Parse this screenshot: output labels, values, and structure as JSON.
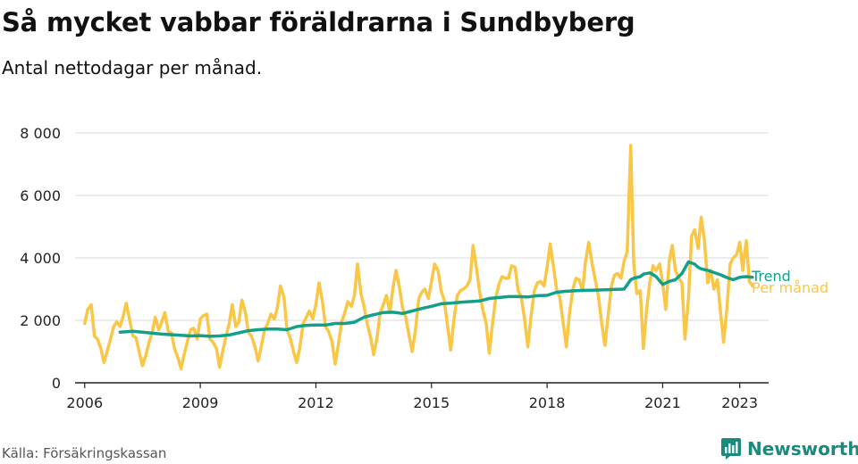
{
  "header": {
    "title": "Så mycket vabbar föräldrarna i Sundbyberg",
    "subtitle": "Antal nettodagar per månad."
  },
  "footer": {
    "source": "Källa: Försäkringskassan",
    "brand": "Newsworthy",
    "brand_icon": "bar-chart-logo-icon"
  },
  "colors": {
    "monthly": "#f9c646",
    "trend": "#13a08a",
    "grid": "#d9d9d9",
    "axis": "#222222",
    "brand": "#1a8a7c"
  },
  "chart_data": {
    "type": "line",
    "ylim": [
      0,
      8000
    ],
    "xlim": [
      2005.75,
      2023.75
    ],
    "y_ticks": [
      0,
      2000,
      4000,
      6000,
      8000
    ],
    "y_tick_labels": [
      "0",
      "2 000",
      "4 000",
      "6 000",
      "8 000"
    ],
    "x_ticks": [
      2006,
      2009,
      2012,
      2015,
      2018,
      2021,
      2023
    ],
    "x_tick_labels": [
      "2006",
      "2009",
      "2012",
      "2015",
      "2018",
      "2021",
      "2023"
    ],
    "grid": true,
    "series": [
      {
        "name": "Per månad",
        "x": [
          2006.0,
          2006.08,
          2006.17,
          2006.25,
          2006.33,
          2006.42,
          2006.5,
          2006.58,
          2006.67,
          2006.75,
          2006.83,
          2006.92,
          2007.0,
          2007.08,
          2007.17,
          2007.25,
          2007.33,
          2007.42,
          2007.5,
          2007.58,
          2007.67,
          2007.75,
          2007.83,
          2007.92,
          2008.0,
          2008.08,
          2008.17,
          2008.25,
          2008.33,
          2008.42,
          2008.5,
          2008.58,
          2008.67,
          2008.75,
          2008.83,
          2008.92,
          2009.0,
          2009.08,
          2009.17,
          2009.25,
          2009.33,
          2009.42,
          2009.5,
          2009.58,
          2009.67,
          2009.75,
          2009.83,
          2009.92,
          2010.0,
          2010.08,
          2010.17,
          2010.25,
          2010.33,
          2010.42,
          2010.5,
          2010.58,
          2010.67,
          2010.75,
          2010.83,
          2010.92,
          2011.0,
          2011.08,
          2011.17,
          2011.25,
          2011.33,
          2011.42,
          2011.5,
          2011.58,
          2011.67,
          2011.75,
          2011.83,
          2011.92,
          2012.0,
          2012.08,
          2012.17,
          2012.25,
          2012.33,
          2012.42,
          2012.5,
          2012.58,
          2012.67,
          2012.75,
          2012.83,
          2012.92,
          2013.0,
          2013.08,
          2013.17,
          2013.25,
          2013.33,
          2013.42,
          2013.5,
          2013.58,
          2013.67,
          2013.75,
          2013.83,
          2013.92,
          2014.0,
          2014.08,
          2014.17,
          2014.25,
          2014.33,
          2014.42,
          2014.5,
          2014.58,
          2014.67,
          2014.75,
          2014.83,
          2014.92,
          2015.0,
          2015.08,
          2015.17,
          2015.25,
          2015.33,
          2015.42,
          2015.5,
          2015.58,
          2015.67,
          2015.75,
          2015.83,
          2015.92,
          2016.0,
          2016.08,
          2016.17,
          2016.25,
          2016.33,
          2016.42,
          2016.5,
          2016.58,
          2016.67,
          2016.75,
          2016.83,
          2016.92,
          2017.0,
          2017.08,
          2017.17,
          2017.25,
          2017.33,
          2017.42,
          2017.5,
          2017.58,
          2017.67,
          2017.75,
          2017.83,
          2017.92,
          2018.0,
          2018.08,
          2018.17,
          2018.25,
          2018.33,
          2018.42,
          2018.5,
          2018.58,
          2018.67,
          2018.75,
          2018.83,
          2018.92,
          2019.0,
          2019.08,
          2019.17,
          2019.25,
          2019.33,
          2019.42,
          2019.5,
          2019.58,
          2019.67,
          2019.75,
          2019.83,
          2019.92,
          2020.0,
          2020.08,
          2020.17,
          2020.25,
          2020.33,
          2020.42,
          2020.5,
          2020.58,
          2020.67,
          2020.75,
          2020.83,
          2020.92,
          2021.0,
          2021.08,
          2021.17,
          2021.25,
          2021.33,
          2021.42,
          2021.5,
          2021.58,
          2021.67,
          2021.75,
          2021.83,
          2021.92,
          2022.0,
          2022.08,
          2022.17,
          2022.25,
          2022.33,
          2022.42,
          2022.5,
          2022.58,
          2022.67,
          2022.75,
          2022.83,
          2022.92,
          2023.0,
          2023.08,
          2023.17,
          2023.25,
          2023.33
        ],
        "values": [
          1900,
          2350,
          2500,
          1500,
          1400,
          1100,
          650,
          1000,
          1400,
          1800,
          1950,
          1800,
          2150,
          2550,
          2000,
          1500,
          1450,
          950,
          550,
          850,
          1300,
          1600,
          2100,
          1700,
          1950,
          2250,
          1650,
          1600,
          1100,
          800,
          450,
          900,
          1350,
          1700,
          1750,
          1400,
          2050,
          2150,
          2200,
          1400,
          1300,
          1100,
          500,
          1000,
          1500,
          1900,
          2500,
          1800,
          1950,
          2650,
          2250,
          1600,
          1500,
          1150,
          700,
          1150,
          1700,
          1900,
          2200,
          2050,
          2400,
          3100,
          2750,
          1700,
          1450,
          1000,
          650,
          1100,
          1900,
          2100,
          2300,
          2050,
          2500,
          3200,
          2600,
          1800,
          1650,
          1300,
          600,
          1200,
          1950,
          2250,
          2600,
          2450,
          2800,
          3800,
          2850,
          2450,
          1900,
          1450,
          900,
          1400,
          2250,
          2500,
          2800,
          2250,
          3050,
          3600,
          3050,
          2400,
          2100,
          1500,
          1000,
          1650,
          2700,
          2900,
          3000,
          2700,
          3250,
          3800,
          3600,
          2950,
          2650,
          1800,
          1050,
          2000,
          2800,
          2950,
          3000,
          3100,
          3300,
          4400,
          3650,
          2900,
          2350,
          1900,
          950,
          1850,
          2750,
          3150,
          3400,
          3350,
          3350,
          3750,
          3700,
          2950,
          2750,
          2000,
          1150,
          2100,
          2950,
          3200,
          3250,
          3100,
          3700,
          4450,
          3700,
          2950,
          2750,
          1900,
          1150,
          2200,
          3000,
          3350,
          3300,
          2950,
          3900,
          4500,
          3800,
          3300,
          2800,
          1900,
          1200,
          2100,
          3100,
          3450,
          3500,
          3350,
          3900,
          4200,
          7600,
          3800,
          2850,
          2950,
          1100,
          2300,
          3250,
          3750,
          3600,
          3800,
          3200,
          2350,
          3900,
          4400,
          3600,
          3350,
          3200,
          1400,
          2700,
          4700,
          4900,
          4300,
          5300,
          4600,
          3200,
          3600,
          3000,
          3300,
          2300,
          1300,
          2400,
          3800,
          4000,
          4100,
          4500,
          3600,
          4550,
          3250,
          3100
        ]
      },
      {
        "name": "Trend",
        "x": [
          2006.92,
          2007.25,
          2007.5,
          2007.75,
          2008.0,
          2008.25,
          2008.5,
          2008.75,
          2009.0,
          2009.25,
          2009.5,
          2009.75,
          2010.0,
          2010.25,
          2010.5,
          2010.75,
          2011.0,
          2011.25,
          2011.5,
          2011.75,
          2012.0,
          2012.25,
          2012.5,
          2012.75,
          2013.0,
          2013.25,
          2013.5,
          2013.75,
          2014.0,
          2014.25,
          2014.5,
          2014.75,
          2015.0,
          2015.25,
          2015.5,
          2015.75,
          2016.0,
          2016.25,
          2016.5,
          2016.75,
          2017.0,
          2017.25,
          2017.5,
          2017.75,
          2018.0,
          2018.25,
          2018.5,
          2018.75,
          2019.0,
          2019.25,
          2019.5,
          2019.75,
          2020.0,
          2020.17,
          2020.25,
          2020.42,
          2020.5,
          2020.67,
          2020.83,
          2021.0,
          2021.17,
          2021.33,
          2021.5,
          2021.67,
          2021.83,
          2021.92,
          2022.0,
          2022.17,
          2022.33,
          2022.5,
          2022.67,
          2022.83,
          2023.0,
          2023.08,
          2023.17,
          2023.25,
          2023.33
        ],
        "values": [
          1620,
          1650,
          1620,
          1590,
          1560,
          1540,
          1520,
          1500,
          1510,
          1490,
          1500,
          1530,
          1600,
          1670,
          1700,
          1720,
          1720,
          1700,
          1800,
          1840,
          1850,
          1850,
          1900,
          1900,
          1940,
          2100,
          2180,
          2250,
          2260,
          2220,
          2300,
          2380,
          2450,
          2530,
          2550,
          2580,
          2600,
          2620,
          2700,
          2730,
          2760,
          2760,
          2750,
          2790,
          2800,
          2900,
          2930,
          2950,
          2960,
          2970,
          2980,
          2990,
          3000,
          3300,
          3350,
          3400,
          3480,
          3520,
          3400,
          3150,
          3250,
          3300,
          3500,
          3870,
          3800,
          3700,
          3650,
          3600,
          3530,
          3460,
          3370,
          3300,
          3380,
          3390,
          3400,
          3390,
          3380
        ]
      }
    ],
    "series_labels": [
      "Trend",
      "Per månad"
    ]
  }
}
